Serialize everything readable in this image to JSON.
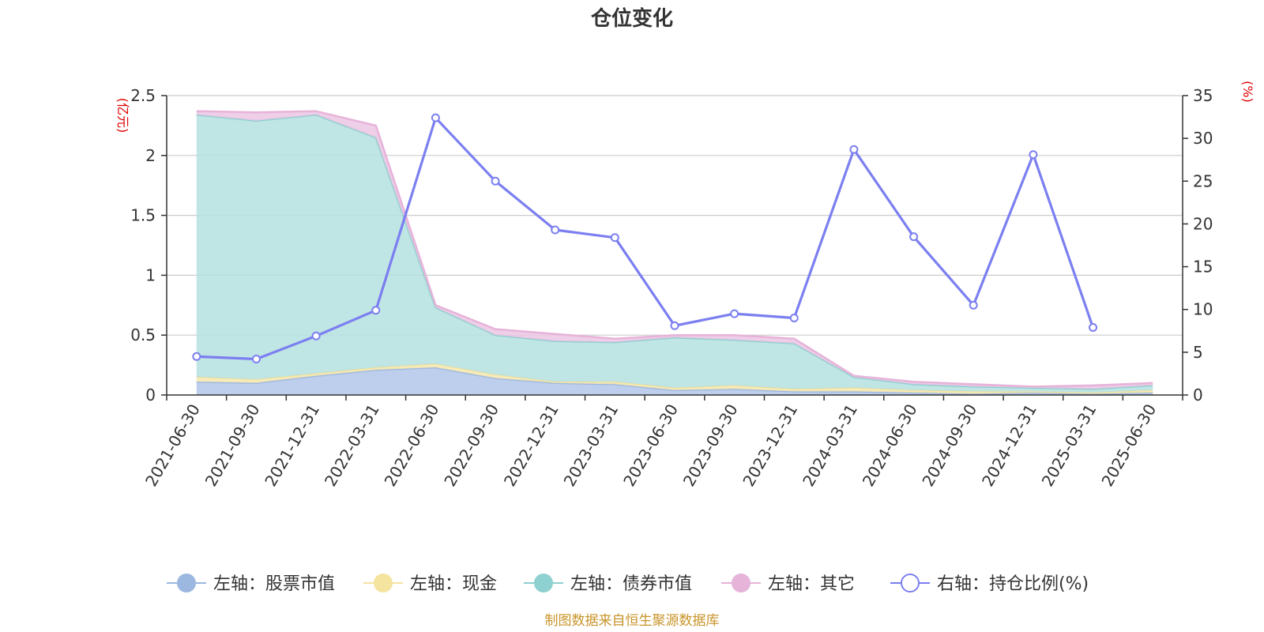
{
  "chart_data": {
    "type": "area",
    "title": "仓位变化",
    "source": "制图数据来自恒生聚源数据库",
    "left_axis": {
      "unit": "(亿元)",
      "ylim": [
        0,
        2.5
      ],
      "ticks": [
        "0",
        "0.5",
        "1",
        "1.5",
        "2",
        "2.5"
      ],
      "tick_values": [
        0,
        0.5,
        1,
        1.5,
        2,
        2.5
      ]
    },
    "right_axis": {
      "unit": "(%)",
      "ylim": [
        0,
        35
      ],
      "ticks": [
        "0",
        "5",
        "10",
        "15",
        "20",
        "25",
        "30",
        "35"
      ],
      "tick_values": [
        0,
        5,
        10,
        15,
        20,
        25,
        30,
        35
      ]
    },
    "categories": [
      "2021-06-30",
      "2021-09-30",
      "2021-12-31",
      "2022-03-31",
      "2022-06-30",
      "2022-09-30",
      "2022-12-31",
      "2023-03-31",
      "2023-06-30",
      "2023-09-30",
      "2023-12-31",
      "2024-03-31",
      "2024-06-30",
      "2024-09-30",
      "2024-12-31",
      "2025-03-31",
      "2025-06-30"
    ],
    "stacked_series": [
      {
        "name": "左轴：股票市值",
        "color": "#9cb7e0",
        "fill": "#b3c7ea",
        "values": [
          0.11,
          0.1,
          0.16,
          0.21,
          0.23,
          0.14,
          0.1,
          0.09,
          0.04,
          0.05,
          0.03,
          0.03,
          0.02,
          0.01,
          0.02,
          0.01,
          0.02
        ]
      },
      {
        "name": "左轴：现金",
        "color": "#f5e3a0",
        "fill": "#f7e9b0",
        "values": [
          0.04,
          0.03,
          0.02,
          0.02,
          0.03,
          0.03,
          0.01,
          0.02,
          0.02,
          0.03,
          0.02,
          0.03,
          0.02,
          0.02,
          0.01,
          0.01,
          0.02
        ]
      },
      {
        "name": "左轴：债券市值",
        "color": "#8fd0d0",
        "fill": "#b5e1e1",
        "values": [
          2.19,
          2.16,
          2.16,
          1.92,
          0.47,
          0.33,
          0.34,
          0.33,
          0.42,
          0.38,
          0.38,
          0.09,
          0.05,
          0.04,
          0.03,
          0.03,
          0.04
        ]
      },
      {
        "name": "左轴：其它",
        "color": "#e6b3d9",
        "fill": "#ecc6e4",
        "values": [
          0.03,
          0.07,
          0.03,
          0.1,
          0.02,
          0.05,
          0.06,
          0.03,
          0.02,
          0.04,
          0.04,
          0.01,
          0.02,
          0.02,
          0.01,
          0.03,
          0.02
        ]
      }
    ],
    "line_series": {
      "name": "右轴：持仓比例(%)",
      "color": "#7b7ff0",
      "values": [
        4.5,
        4.2,
        6.9,
        9.9,
        32.4,
        25.0,
        19.3,
        18.4,
        8.1,
        9.5,
        9.0,
        28.7,
        18.5,
        10.5,
        28.1,
        7.9,
        null
      ]
    },
    "grid": true,
    "legend_position": "bottom"
  }
}
